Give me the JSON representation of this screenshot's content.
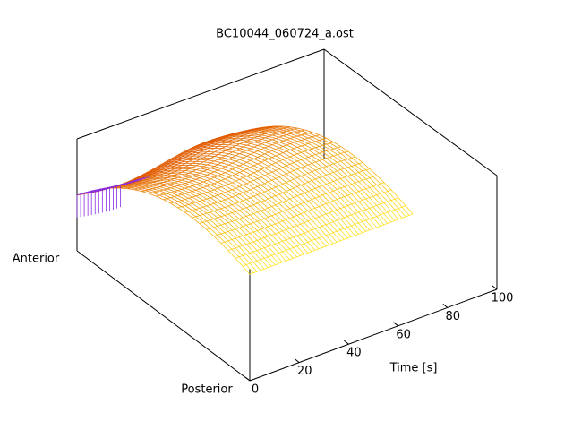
{
  "chart_data": {
    "type": "surface",
    "title": "BC10044_060724_a.ost",
    "x_label": "Time [s]",
    "y_labels": [
      "Posterior",
      "Anterior"
    ],
    "xlim": [
      0,
      100
    ],
    "xticks": [
      0,
      20,
      40,
      60,
      80,
      100
    ]
  }
}
